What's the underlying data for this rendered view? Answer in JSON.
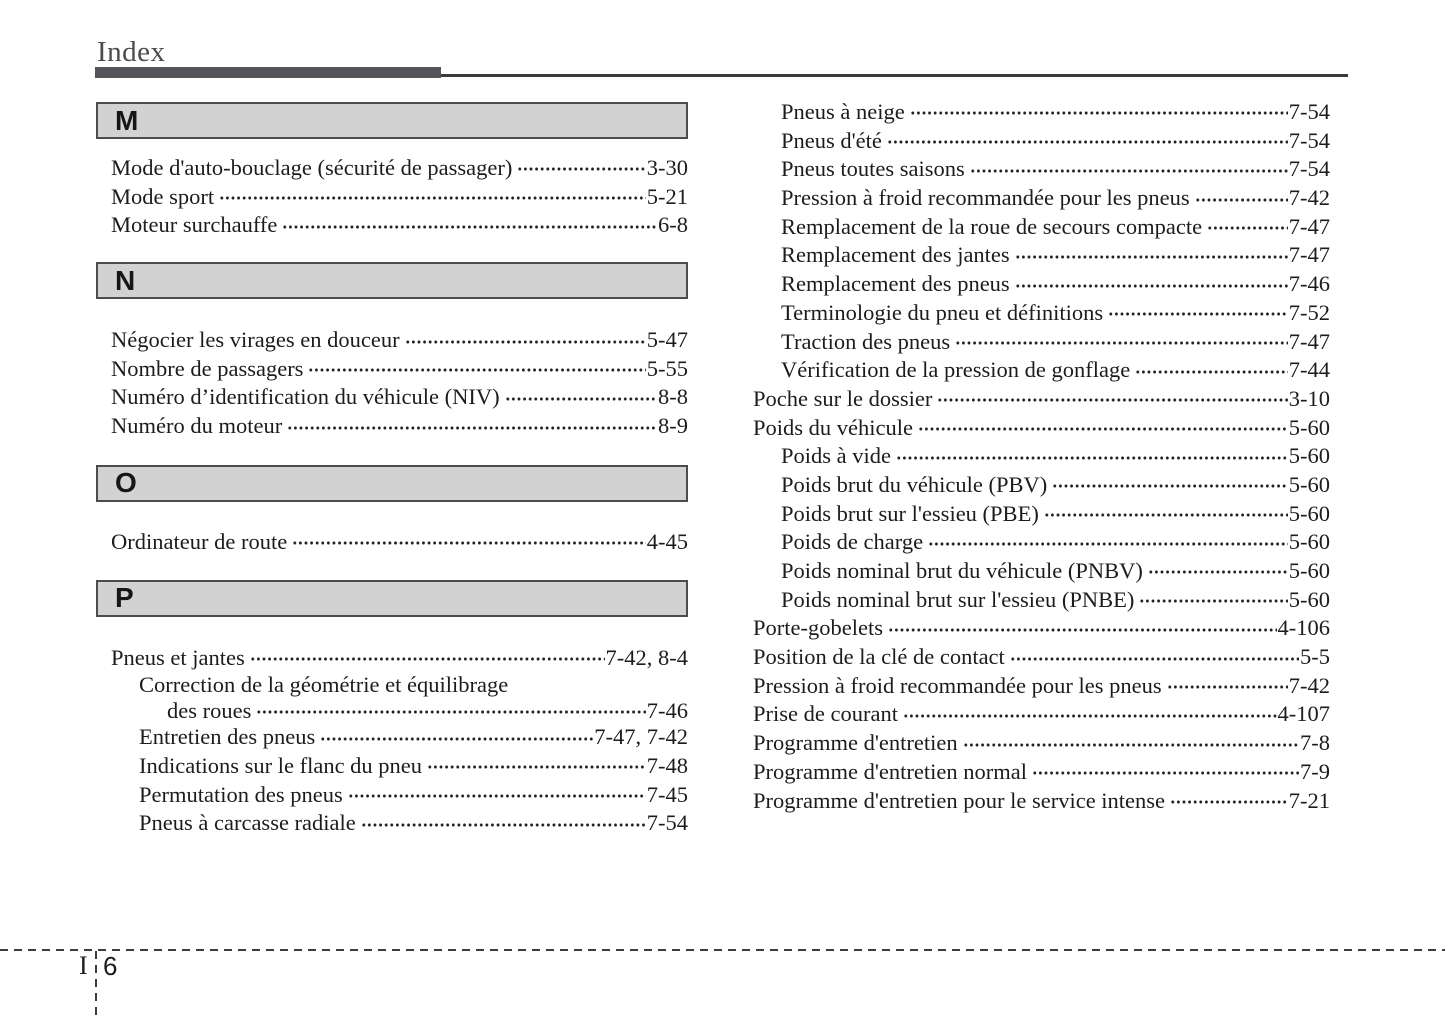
{
  "header": {
    "title": "Index"
  },
  "footer": {
    "section_letter": "I",
    "page_number": "6"
  },
  "colors": {
    "text": "#1c1c1c",
    "section_box_bg": "#d2d2d2",
    "section_box_border": "#4c4c4c",
    "header_bar": "#53555a"
  },
  "index": {
    "left_sections": [
      {
        "letter": "M",
        "entries": [
          {
            "label": "Mode d'auto-bouclage (sécurité de passager)",
            "page": "3-30",
            "indent": 0
          },
          {
            "label": "Mode sport",
            "page": "5-21",
            "indent": 0
          },
          {
            "label": "Moteur surchauffe",
            "page": "6-8",
            "indent": 0
          }
        ]
      },
      {
        "letter": "N",
        "entries": [
          {
            "label": "Négocier les virages en douceur",
            "page": "5-47",
            "indent": 0
          },
          {
            "label": "Nombre de passagers",
            "page": "5-55",
            "indent": 0
          },
          {
            "label": "Numéro d’identification du véhicule (NIV)",
            "page": "8-8",
            "indent": 0
          },
          {
            "label": "Numéro du moteur",
            "page": "8-9",
            "indent": 0
          }
        ]
      },
      {
        "letter": "O",
        "entries": [
          {
            "label": "Ordinateur de route",
            "page": "4-45",
            "indent": 0
          }
        ]
      },
      {
        "letter": "P",
        "entries": [
          {
            "label": "Pneus et jantes",
            "page": "7-42, 8-4",
            "indent": 0
          },
          {
            "label": "Correction de la géométrie et équilibrage",
            "label2": "des roues",
            "page": "7-46",
            "indent": 1
          },
          {
            "label": "Entretien des pneus",
            "page": "7-47, 7-42",
            "indent": 1
          },
          {
            "label": "Indications sur le flanc du pneu",
            "page": "7-48",
            "indent": 1
          },
          {
            "label": "Permutation des pneus",
            "page": "7-45",
            "indent": 1
          },
          {
            "label": "Pneus à carcasse radiale",
            "page": "7-54",
            "indent": 1
          }
        ]
      }
    ],
    "right_entries": [
      {
        "label": "Pneus à neige",
        "page": "7-54",
        "indent": 1
      },
      {
        "label": "Pneus d'été",
        "page": "7-54",
        "indent": 1
      },
      {
        "label": "Pneus toutes saisons",
        "page": "7-54",
        "indent": 1
      },
      {
        "label": "Pression à froid recommandée pour les pneus",
        "page": "7-42",
        "indent": 1
      },
      {
        "label": "Remplacement de la roue de secours compacte",
        "page": "7-47",
        "indent": 1
      },
      {
        "label": "Remplacement des jantes",
        "page": "7-47",
        "indent": 1
      },
      {
        "label": "Remplacement des pneus",
        "page": "7-46",
        "indent": 1
      },
      {
        "label": "Terminologie du pneu et définitions",
        "page": "7-52",
        "indent": 1
      },
      {
        "label": "Traction des pneus",
        "page": "7-47",
        "indent": 1
      },
      {
        "label": "Vérification de la pression de gonflage",
        "page": "7-44",
        "indent": 1
      },
      {
        "label": "Poche sur le dossier",
        "page": "3-10",
        "indent": 0
      },
      {
        "label": "Poids du véhicule",
        "page": "5-60",
        "indent": 0
      },
      {
        "label": "Poids à vide",
        "page": "5-60",
        "indent": 1
      },
      {
        "label": "Poids brut du véhicule (PBV)",
        "page": "5-60",
        "indent": 1
      },
      {
        "label": "Poids brut sur l'essieu (PBE)",
        "page": "5-60",
        "indent": 1
      },
      {
        "label": "Poids de charge",
        "page": "5-60",
        "indent": 1
      },
      {
        "label": "Poids nominal brut du véhicule (PNBV)",
        "page": "5-60",
        "indent": 1
      },
      {
        "label": "Poids nominal brut sur l'essieu (PNBE)",
        "page": "5-60",
        "indent": 1
      },
      {
        "label": "Porte-gobelets",
        "page": "4-106",
        "indent": 0
      },
      {
        "label": "Position de la clé de contact",
        "page": "5-5",
        "indent": 0
      },
      {
        "label": "Pression à froid recommandée pour les pneus",
        "page": "7-42",
        "indent": 0
      },
      {
        "label": "Prise de courant",
        "page": "4-107",
        "indent": 0
      },
      {
        "label": "Programme d'entretien",
        "page": "7-8",
        "indent": 0
      },
      {
        "label": "Programme d'entretien normal",
        "page": "7-9",
        "indent": 0
      },
      {
        "label": "Programme d'entretien pour le service intense",
        "page": "7-21",
        "indent": 0
      }
    ]
  }
}
